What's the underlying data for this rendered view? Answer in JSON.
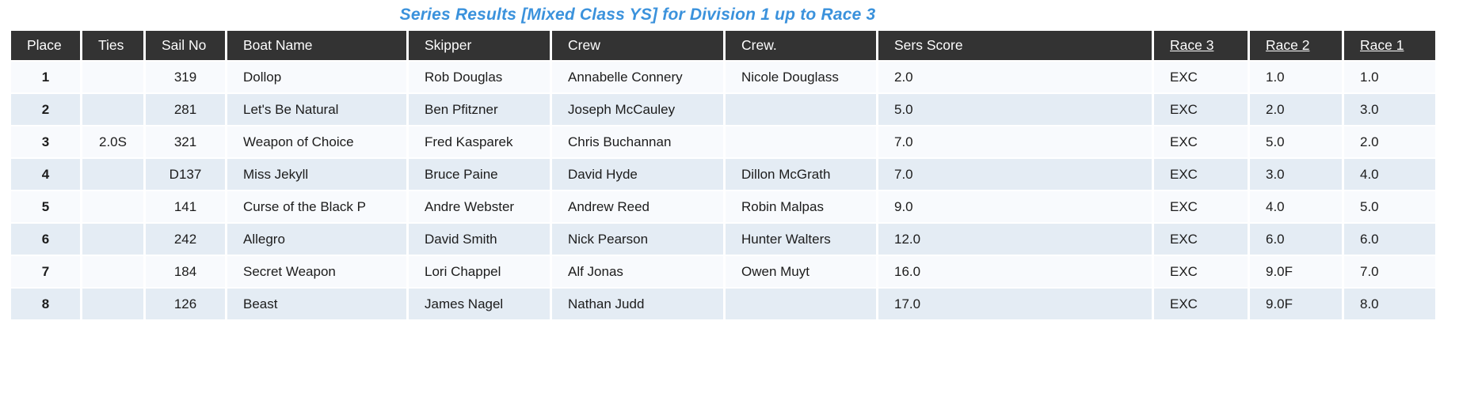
{
  "title": "Series Results [Mixed Class YS] for Division 1 up to Race 3",
  "colors": {
    "title_blue": "#3b92dc",
    "header_bg": "#333333",
    "header_text": "#fdfdfd",
    "row_odd": "#f8fafd",
    "row_even": "#e4ecf4",
    "cell_text": "#1c1c1c"
  },
  "table": {
    "columns": [
      {
        "key": "place",
        "label": "Place",
        "linked": false
      },
      {
        "key": "ties",
        "label": "Ties",
        "linked": false
      },
      {
        "key": "sail_no",
        "label": "Sail No",
        "linked": false
      },
      {
        "key": "boat_name",
        "label": "Boat Name",
        "linked": false
      },
      {
        "key": "skipper",
        "label": "Skipper",
        "linked": false
      },
      {
        "key": "crew",
        "label": "Crew",
        "linked": false
      },
      {
        "key": "crew2",
        "label": "Crew.",
        "linked": false
      },
      {
        "key": "sers_score",
        "label": "Sers Score",
        "linked": false
      },
      {
        "key": "race3",
        "label": "Race 3",
        "linked": true
      },
      {
        "key": "race2",
        "label": "Race 2",
        "linked": true
      },
      {
        "key": "race1",
        "label": "Race 1",
        "linked": true
      }
    ],
    "rows": [
      {
        "place": "1",
        "ties": "",
        "sail_no": "319",
        "boat_name": "Dollop",
        "skipper": "Rob Douglas",
        "crew": "Annabelle Connery",
        "crew2": "Nicole Douglass",
        "sers_score": "2.0",
        "race3": "EXC",
        "race2": "1.0",
        "race1": "1.0"
      },
      {
        "place": "2",
        "ties": "",
        "sail_no": "281",
        "boat_name": "Let's Be Natural",
        "skipper": "Ben Pfitzner",
        "crew": "Joseph McCauley",
        "crew2": "",
        "sers_score": "5.0",
        "race3": "EXC",
        "race2": "2.0",
        "race1": "3.0"
      },
      {
        "place": "3",
        "ties": "2.0S",
        "sail_no": "321",
        "boat_name": "Weapon of Choice",
        "skipper": "Fred Kasparek",
        "crew": "Chris Buchannan",
        "crew2": "",
        "sers_score": "7.0",
        "race3": "EXC",
        "race2": "5.0",
        "race1": "2.0"
      },
      {
        "place": "4",
        "ties": "",
        "sail_no": "D137",
        "boat_name": "Miss Jekyll",
        "skipper": "Bruce Paine",
        "crew": "David Hyde",
        "crew2": "Dillon McGrath",
        "sers_score": "7.0",
        "race3": "EXC",
        "race2": "3.0",
        "race1": "4.0"
      },
      {
        "place": "5",
        "ties": "",
        "sail_no": "141",
        "boat_name": "Curse of the Black P",
        "skipper": "Andre Webster",
        "crew": "Andrew Reed",
        "crew2": "Robin Malpas",
        "sers_score": "9.0",
        "race3": "EXC",
        "race2": "4.0",
        "race1": "5.0"
      },
      {
        "place": "6",
        "ties": "",
        "sail_no": "242",
        "boat_name": "Allegro",
        "skipper": "David Smith",
        "crew": "Nick Pearson",
        "crew2": "Hunter Walters",
        "sers_score": "12.0",
        "race3": "EXC",
        "race2": "6.0",
        "race1": "6.0"
      },
      {
        "place": "7",
        "ties": "",
        "sail_no": "184",
        "boat_name": "Secret Weapon",
        "skipper": "Lori Chappel",
        "crew": "Alf Jonas",
        "crew2": "Owen Muyt",
        "sers_score": "16.0",
        "race3": "EXC",
        "race2": "9.0F",
        "race1": "7.0"
      },
      {
        "place": "8",
        "ties": "",
        "sail_no": "126",
        "boat_name": "Beast",
        "skipper": "James Nagel",
        "crew": "Nathan Judd",
        "crew2": "",
        "sers_score": "17.0",
        "race3": "EXC",
        "race2": "9.0F",
        "race1": "8.0"
      }
    ]
  }
}
